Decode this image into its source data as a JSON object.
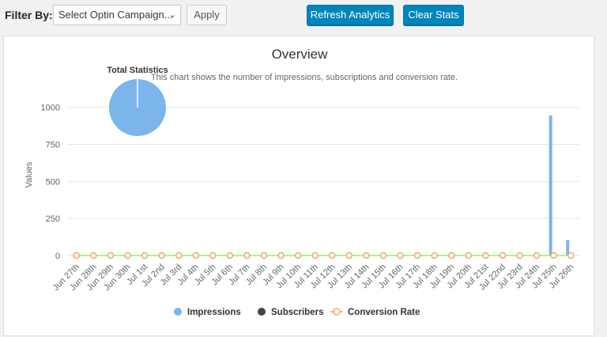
{
  "toolbar": {
    "filter_label": "Filter By:",
    "select_value": "Select Optin Campaign...",
    "apply_label": "Apply",
    "refresh_label": "Refresh Analytics",
    "clear_label": "Clear Stats"
  },
  "chart_data": {
    "type": "line",
    "title": "Overview",
    "subtitle": "This chart shows the number of impressions, subscriptions and conversion rate.",
    "ylabel": "Values",
    "xlabel": "",
    "ylim": [
      0,
      1100
    ],
    "y_ticks": [
      0,
      250,
      500,
      750,
      1000
    ],
    "grid": true,
    "legend_position": "bottom",
    "categories": [
      "Jun 27th",
      "Jun 28th",
      "Jun 29th",
      "Jun 30th",
      "Jul 1st",
      "Jul 2nd",
      "Jul 3rd",
      "Jul 4th",
      "Jul 5th",
      "Jul 6th",
      "Jul 7th",
      "Jul 8th",
      "Jul 9th",
      "Jul 10th",
      "Jul 11th",
      "Jul 12th",
      "Jul 13th",
      "Jul 14th",
      "Jul 15th",
      "Jul 16th",
      "Jul 17th",
      "Jul 18th",
      "Jul 19th",
      "Jul 20th",
      "Jul 21st",
      "Jul 22nd",
      "Jul 23rd",
      "Jul 24th",
      "Jul 25th",
      "Jul 26th"
    ],
    "series": [
      {
        "name": "Impressions",
        "kind": "bar",
        "color": "#7cb5ec",
        "values": [
          0,
          0,
          0,
          0,
          0,
          0,
          0,
          0,
          0,
          0,
          0,
          0,
          0,
          0,
          0,
          0,
          0,
          0,
          0,
          0,
          0,
          0,
          0,
          0,
          0,
          0,
          0,
          0,
          945,
          105
        ]
      },
      {
        "name": "Subscribers",
        "kind": "bar",
        "color": "#434348",
        "values": [
          0,
          0,
          0,
          0,
          0,
          0,
          0,
          0,
          0,
          0,
          0,
          0,
          0,
          0,
          0,
          0,
          0,
          0,
          0,
          0,
          0,
          0,
          0,
          0,
          0,
          0,
          0,
          0,
          0,
          0
        ]
      },
      {
        "name": "Conversion Rate",
        "kind": "line",
        "color": "#f7a35c",
        "line_color": "#90ed7d",
        "values": [
          0,
          0,
          0,
          0,
          0,
          0,
          0,
          0,
          0,
          0,
          0,
          0,
          0,
          0,
          0,
          0,
          0,
          0,
          0,
          0,
          0,
          0,
          0,
          0,
          0,
          0,
          0,
          0,
          0,
          0
        ]
      }
    ],
    "pie": {
      "title": "Total Statistics",
      "slices": [
        {
          "name": "Impressions",
          "value": 1050,
          "color": "#7cb5ec"
        },
        {
          "name": "Subscribers",
          "value": 0,
          "color": "#434348"
        }
      ]
    }
  }
}
